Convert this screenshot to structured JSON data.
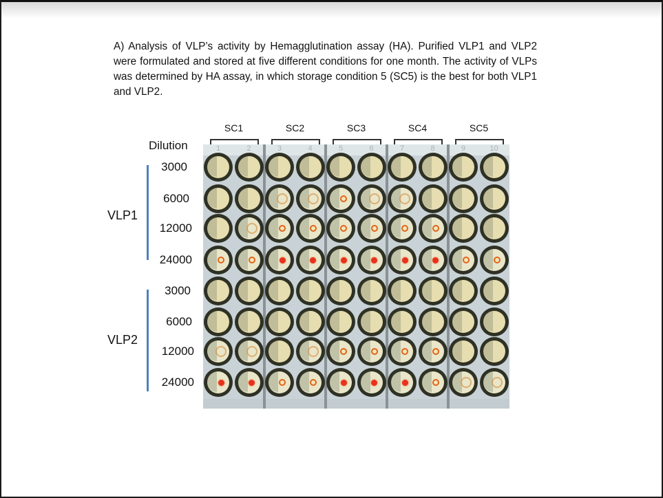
{
  "caption": "A) Analysis of VLP’s activity by Hemagglutination assay (HA). Purified VLP1 and VLP2 were formulated and stored at five different conditions for one month. The activity of VLPs was determined by HA assay, in which storage condition 5 (SC5) is the best for both VLP1 and VLP2.",
  "figure": {
    "storage_conditions": [
      "SC1",
      "SC2",
      "SC3",
      "SC4",
      "SC5"
    ],
    "plate_column_numbers": [
      "1",
      "2",
      "3",
      "4",
      "5",
      "6",
      "7",
      "8",
      "9",
      "10"
    ],
    "dilution_header": "Dilution",
    "groups": [
      {
        "label": "VLP1",
        "dilutions": [
          "3000",
          "6000",
          "12000",
          "24000"
        ]
      },
      {
        "label": "VLP2",
        "dilutions": [
          "3000",
          "6000",
          "12000",
          "24000"
        ]
      }
    ],
    "well_states_legend": {
      "neg": "agglutinated (no button)",
      "faint": "partial ring",
      "ring": "small button ring",
      "dot": "compact red button"
    },
    "wells": [
      [
        "neg",
        "neg",
        "neg",
        "neg",
        "neg",
        "neg",
        "neg",
        "neg",
        "neg",
        "neg"
      ],
      [
        "neg",
        "neg",
        "faint",
        "faint",
        "ring",
        "faint",
        "faint",
        "neg",
        "neg",
        "neg"
      ],
      [
        "neg",
        "faint",
        "ring",
        "ring",
        "ring",
        "ring",
        "ring",
        "ring",
        "neg",
        "neg"
      ],
      [
        "ring",
        "ring",
        "dot",
        "dot",
        "dot",
        "dot",
        "dot",
        "dot",
        "ring",
        "ring"
      ],
      [
        "neg",
        "neg",
        "neg",
        "neg",
        "neg",
        "neg",
        "neg",
        "neg",
        "neg",
        "neg"
      ],
      [
        "neg",
        "neg",
        "neg",
        "neg",
        "neg",
        "neg",
        "neg",
        "neg",
        "neg",
        "neg"
      ],
      [
        "faint",
        "faint",
        "neg",
        "faint",
        "ring",
        "ring",
        "ring",
        "ring",
        "neg",
        "neg"
      ],
      [
        "dot",
        "dot",
        "ring",
        "ring",
        "dot",
        "dot",
        "dot",
        "ring",
        "faint",
        "faint"
      ]
    ],
    "colors": {
      "group_bar": "#4f81bd",
      "button_red": "#e8321e",
      "ring_orange": "#e2641c"
    }
  }
}
